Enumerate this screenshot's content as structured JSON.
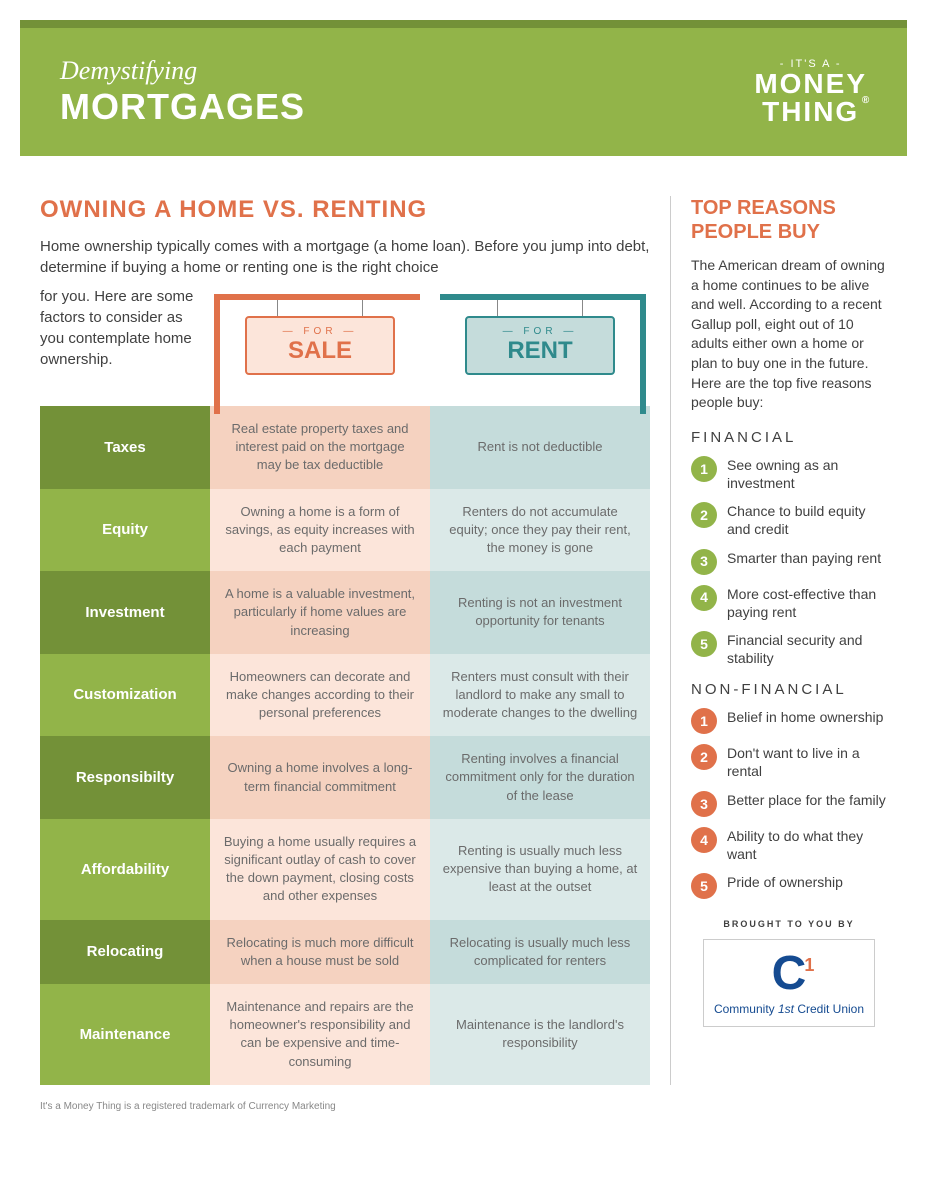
{
  "colors": {
    "green_dark": "#739138",
    "green_light": "#92b449",
    "orange": "#e0714a",
    "teal": "#2f8a8c",
    "sale_bg_odd": "#f5d2c0",
    "sale_bg_even": "#fce5da",
    "rent_bg_odd": "#c5dcdb",
    "rent_bg_even": "#dbe9e8",
    "text": "#404040",
    "sponsor_blue": "#154b91"
  },
  "banner": {
    "subtitle": "Demystifying",
    "title": "MORTGAGES",
    "logo_top": "- IT'S A -",
    "logo_line1": "MONEY",
    "logo_line2": "THING"
  },
  "main": {
    "title": "OWNING A HOME VS. RENTING",
    "intro1": "Home ownership typically comes with a mortgage (a home loan). Before you jump into debt, determine if buying a home or renting one is the right choice",
    "intro2": "for you. Here are some factors to consider as you contemplate home ownership.",
    "sign_for": "— FOR —",
    "sign_sale": "SALE",
    "sign_rent": "RENT"
  },
  "table": [
    {
      "label": "Taxes",
      "sale": "Real estate property taxes and interest paid on the mortgage may be tax deductible",
      "rent": "Rent is not deductible"
    },
    {
      "label": "Equity",
      "sale": "Owning a home is a form of savings, as equity increases with each payment",
      "rent": "Renters do not accumulate equity; once they pay their rent, the money is gone"
    },
    {
      "label": "Investment",
      "sale": "A home is a valuable investment, particularly if home values are increasing",
      "rent": "Renting is not an investment opportunity for tenants"
    },
    {
      "label": "Customization",
      "sale": "Homeowners can decorate and make changes according to their personal preferences",
      "rent": "Renters must consult with their landlord to make any small to moderate changes to the dwelling"
    },
    {
      "label": "Responsibilty",
      "sale": "Owning a home involves a long-term financial commitment",
      "rent": "Renting involves a financial commitment only for the duration of the lease"
    },
    {
      "label": "Affordability",
      "sale": "Buying a home usually requires a significant outlay of cash to cover the down payment, closing costs and other expenses",
      "rent": "Renting is usually much less expensive than buying a home, at least at the outset"
    },
    {
      "label": "Relocating",
      "sale": "Relocating is much more difficult when a house must be sold",
      "rent": "Relocating is usually much less complicated for renters"
    },
    {
      "label": "Maintenance",
      "sale": "Maintenance and repairs are the homeowner's responsibility and can be expensive and time-consuming",
      "rent": "Maintenance is the landlord's responsibility"
    }
  ],
  "sidebar": {
    "title": "TOP REASONS PEOPLE BUY",
    "intro": "The American dream of owning a home continues to be alive and well. According to a recent Gallup poll, eight out of 10 adults either own a home or plan to buy one in the future. Here are the top five reasons people buy:",
    "financial_heading": "FINANCIAL",
    "financial": [
      "See owning as an investment",
      "Chance to build equity and credit",
      "Smarter than paying rent",
      "More cost-effective than paying rent",
      "Financial security and stability"
    ],
    "nonfinancial_heading": "NON-FINANCIAL",
    "nonfinancial": [
      "Belief in home ownership",
      "Don't want to live in a rental",
      "Better place for the family",
      "Ability to do what they want",
      "Pride of ownership"
    ],
    "brought_label": "BROUGHT TO YOU BY",
    "sponsor_c": "C",
    "sponsor_sup": "1",
    "sponsor_name_pre": "Community ",
    "sponsor_name_em": "1st",
    "sponsor_name_post": " Credit Union"
  },
  "trademark": "It's a Money Thing is a registered trademark of Currency Marketing"
}
